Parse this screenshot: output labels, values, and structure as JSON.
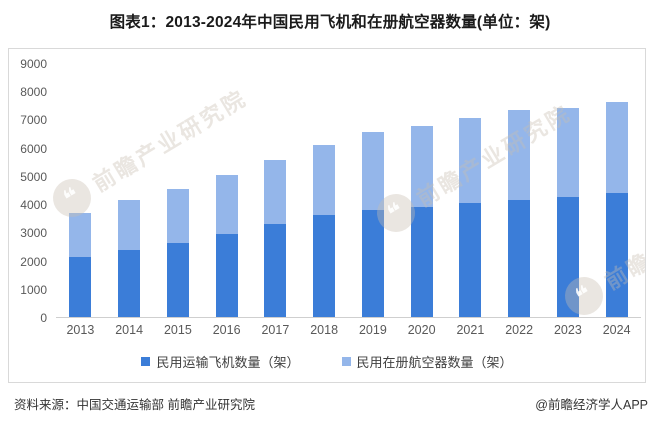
{
  "title": "图表1：2013-2024年中国民用飞机和在册航空器数量(单位：架)",
  "chart_data": {
    "type": "bar",
    "stacking": "overlay",
    "title": "图表1：2013-2024年中国民用飞机和在册航空器数量(单位：架)",
    "unit": "架",
    "categories": [
      "2013",
      "2014",
      "2015",
      "2016",
      "2017",
      "2018",
      "2019",
      "2020",
      "2021",
      "2022",
      "2023",
      "2024"
    ],
    "series": [
      {
        "name": "民用运输飞机数量（架）",
        "color": "#3b7dd8",
        "values": [
          2145,
          2370,
          2650,
          2950,
          3296,
          3639,
          3818,
          3903,
          4054,
          4165,
          4270,
          4394
        ]
      },
      {
        "name": "民用在册航空器数量（架）",
        "color": "#94b6ea",
        "values": [
          3716,
          4168,
          4554,
          5038,
          5593,
          6134,
          6570,
          6795,
          7075,
          7351,
          7427,
          7639
        ]
      }
    ],
    "xlabel": "",
    "ylabel": "",
    "ylim": [
      0,
      9000
    ],
    "ytick_step": 1000,
    "yticks": [
      "9000",
      "8000",
      "7000",
      "6000",
      "5000",
      "4000",
      "3000",
      "2000",
      "1000",
      "0"
    ],
    "grid": false,
    "legend_position": "bottom"
  },
  "footer": {
    "source": "资料来源：中国交通运输部 前瞻产业研究院",
    "credit": "@前瞻经济学人APP"
  },
  "watermark": {
    "text": "前瞻产业研究院",
    "logo_glyph": "❝"
  },
  "colors": {
    "transport_aircraft_bar": "#3b7dd8",
    "registered_aircraft_bar": "#94b6ea",
    "axis_text": "#595959",
    "panel_border": "#d9d9d9",
    "baseline": "#cfcfcf"
  }
}
